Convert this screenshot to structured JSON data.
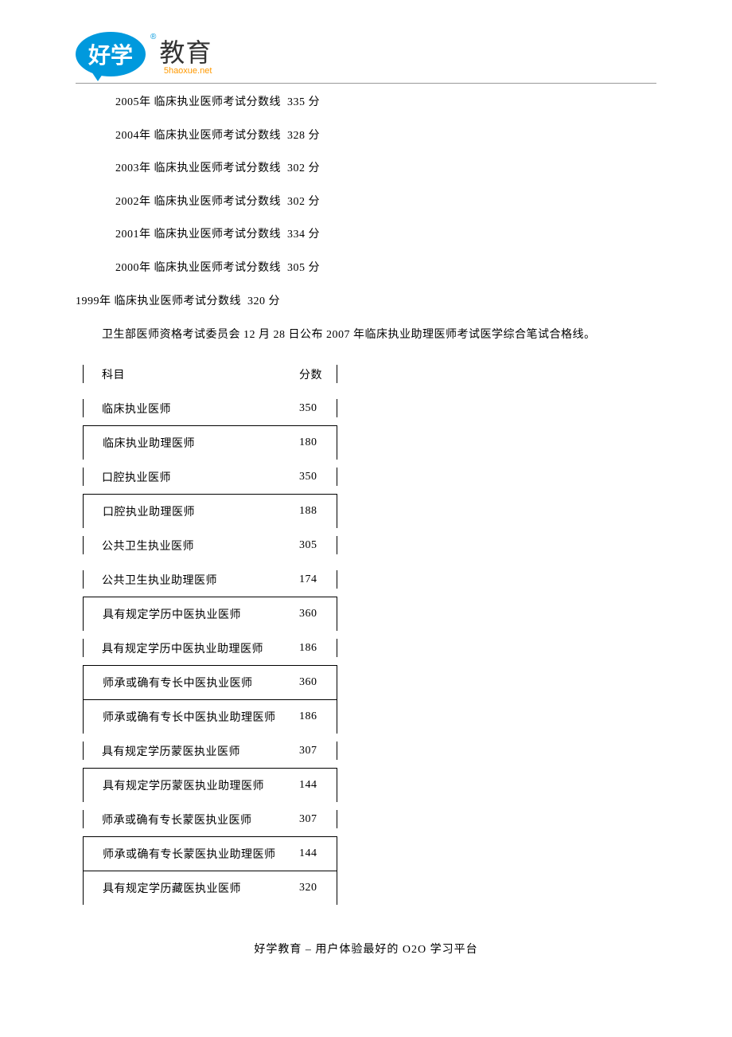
{
  "logo": {
    "bubble_text": "好学",
    "right_text": "教育",
    "subtext": "5haoxue.net",
    "reg_mark": "®"
  },
  "historical_lines": [
    {
      "year": "2005",
      "label": "临床执业医师考试分数线",
      "score": "335"
    },
    {
      "year": "2004",
      "label": "临床执业医师考试分数线",
      "score": "328"
    },
    {
      "year": "2003",
      "label": "临床执业医师考试分数线",
      "score": "302"
    },
    {
      "year": "2002",
      "label": "临床执业医师考试分数线",
      "score": "302"
    },
    {
      "year": "2001",
      "label": "临床执业医师考试分数线",
      "score": "334"
    },
    {
      "year": "2000",
      "label": "临床执业医师考试分数线",
      "score": "305"
    }
  ],
  "line_1999": {
    "year": "1999",
    "label": "临床执业医师考试分数线",
    "score": "320"
  },
  "unit_year": "年",
  "unit_score": "分",
  "intro": "卫生部医师资格考试委员会 12 月 28 日公布 2007 年临床执业助理医师考试医学综合笔试合格线。",
  "table": {
    "columns": [
      "科目",
      "分数"
    ],
    "rows": [
      {
        "subject": "临床执业医师",
        "score": "350",
        "top_border": false
      },
      {
        "subject": "临床执业助理医师",
        "score": "180",
        "top_border": true
      },
      {
        "subject": "口腔执业医师",
        "score": "350",
        "top_border": false
      },
      {
        "subject": "口腔执业助理医师",
        "score": "188",
        "top_border": true
      },
      {
        "subject": "公共卫生执业医师",
        "score": "305",
        "top_border": false
      },
      {
        "subject": "公共卫生执业助理医师",
        "score": "174",
        "top_border": false
      },
      {
        "subject": "具有规定学历中医执业医师",
        "score": "360",
        "top_border": true
      },
      {
        "subject": "具有规定学历中医执业助理医师",
        "score": "186",
        "top_border": false
      },
      {
        "subject": "师承或确有专长中医执业医师",
        "score": "360",
        "top_border": true
      },
      {
        "subject": "师承或确有专长中医执业助理医师",
        "score": "186",
        "top_border": true
      },
      {
        "subject": "具有规定学历蒙医执业医师",
        "score": "307",
        "top_border": false
      },
      {
        "subject": "具有规定学历蒙医执业助理医师",
        "score": "144",
        "top_border": true
      },
      {
        "subject": "师承或确有专长蒙医执业医师",
        "score": "307",
        "top_border": false
      },
      {
        "subject": "师承或确有专长蒙医执业助理医师",
        "score": "144",
        "top_border": true
      },
      {
        "subject": "具有规定学历藏医执业医师",
        "score": "320",
        "top_border": true
      }
    ]
  },
  "footer": "好学教育  –  用户体验最好的 O2O 学习平台"
}
